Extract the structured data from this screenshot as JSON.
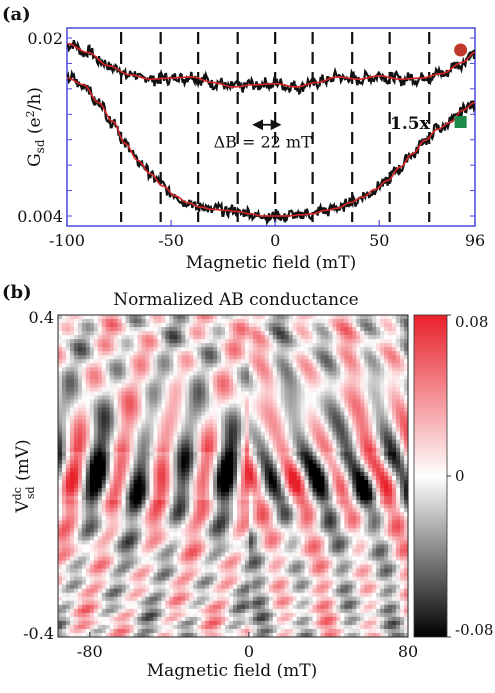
{
  "chart_data": [
    {
      "type": "line",
      "panel_label": "(a)",
      "ylabel_main": "G",
      "ylabel_sub": "sd",
      "ylabel_unit_pre": " (e",
      "ylabel_unit_sup": "2",
      "ylabel_unit_post": "/h)",
      "xlabel": "Magnetic field (mT)",
      "xlim": [
        -100,
        96
      ],
      "ylim": [
        0.004,
        0.02
      ],
      "x_ticks": [
        -100,
        -50,
        0,
        50,
        96
      ],
      "x_tick_labels": [
        "-100",
        "-50",
        "0",
        "50",
        "96"
      ],
      "y_tick_labels": [
        {
          "value": 0.02,
          "label": "0.02"
        },
        {
          "value": 0.004,
          "label": "0.004"
        }
      ],
      "dashed_lines_x": [
        -74,
        -55,
        -37,
        -18,
        0,
        18,
        37,
        55,
        74
      ],
      "annotation": {
        "text": "ΔB = 22 mT",
        "arrow_from_x": -10,
        "arrow_to_x": 2,
        "arrow_y": 0.0122,
        "text_y": 0.0105,
        "text_x": -6
      },
      "series": [
        {
          "marker": "circle",
          "marker_color": "#c0392b",
          "marker_x": 79,
          "marker_y": 0.0184,
          "raw_color": "#111111",
          "fit_color": "#d62728",
          "x": [
            -100,
            -90,
            -80,
            -70,
            -60,
            -50,
            -40,
            -30,
            -20,
            -10,
            0,
            10,
            20,
            30,
            40,
            50,
            60,
            70,
            80,
            90,
            96
          ],
          "y": [
            0.0195,
            0.0187,
            0.0175,
            0.0167,
            0.0163,
            0.0164,
            0.0165,
            0.016,
            0.0156,
            0.0158,
            0.0159,
            0.0156,
            0.016,
            0.0165,
            0.0163,
            0.0166,
            0.0163,
            0.0164,
            0.0168,
            0.0178,
            0.0187
          ]
        },
        {
          "label": "1.5x",
          "marker": "square",
          "marker_color": "#1e8a4a",
          "marker_x": 79,
          "marker_y": 0.0128,
          "raw_color": "#111111",
          "fit_color": "#d62728",
          "x": [
            -100,
            -92,
            -85,
            -78,
            -72,
            -66,
            -60,
            -54,
            -48,
            -42,
            -36,
            -30,
            -24,
            -18,
            -12,
            -6,
            0,
            6,
            12,
            18,
            24,
            30,
            36,
            42,
            48,
            54,
            60,
            66,
            72,
            78,
            84,
            90,
            96
          ],
          "y": [
            0.0164,
            0.0158,
            0.0142,
            0.0125,
            0.0105,
            0.009,
            0.0078,
            0.0067,
            0.0058,
            0.0052,
            0.0048,
            0.0046,
            0.0045,
            0.0044,
            0.0042,
            0.004,
            0.004,
            0.004,
            0.0041,
            0.0042,
            0.0045,
            0.0047,
            0.0052,
            0.0057,
            0.0064,
            0.0072,
            0.0084,
            0.0096,
            0.0108,
            0.0118,
            0.0124,
            0.0135,
            0.0142
          ]
        }
      ]
    },
    {
      "type": "heatmap",
      "panel_label": "(b)",
      "title": "Normalized AB conductance",
      "xlabel": "Magnetic field (mT)",
      "ylabel_main": "V",
      "ylabel_sup": "dc",
      "ylabel_sub": "sd",
      "ylabel_unit": " (mV)",
      "xlim": [
        -96,
        80
      ],
      "ylim": [
        -0.4,
        0.4
      ],
      "x_ticks": [
        -80,
        0,
        80
      ],
      "x_tick_labels": [
        "-80",
        "0",
        "80"
      ],
      "y_tick_labels": [
        {
          "value": 0.4,
          "label": "0.4"
        },
        {
          "value": -0.4,
          "label": "-0.4"
        }
      ],
      "colorbar": {
        "min": -0.08,
        "max": 0.08,
        "tick_labels": [
          {
            "value": 0.08,
            "label": "0.08"
          },
          {
            "value": 0,
            "label": "0"
          },
          {
            "value": -0.08,
            "label": "-0.08"
          }
        ],
        "colors": {
          "high": "#e8202a",
          "mid": "#ffffff",
          "low": "#000000"
        }
      },
      "oscillation_period_mT": 22
    }
  ]
}
